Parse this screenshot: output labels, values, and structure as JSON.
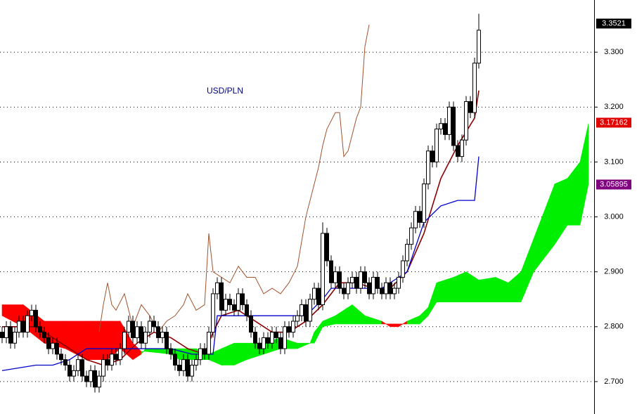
{
  "chart_data": {
    "type": "candlestick",
    "title": "USD/PLN",
    "xlim": [
      -0.5,
      140.5
    ],
    "ylim": [
      2.641,
      3.395
    ],
    "yticks": [
      {
        "value": 2.7,
        "label": "2.700"
      },
      {
        "value": 2.8,
        "label": "2.800"
      },
      {
        "value": 2.9,
        "label": "2.900"
      },
      {
        "value": 3.0,
        "label": "3.000"
      },
      {
        "value": 3.1,
        "label": "3.100"
      },
      {
        "value": 3.2,
        "label": "3.200"
      },
      {
        "value": 3.3,
        "label": "3.300"
      }
    ],
    "grid": true,
    "up_color": "#ffffff",
    "down_color": "#000000",
    "open": [
      2.79,
      2.78,
      2.8,
      2.77,
      2.79,
      2.81,
      2.79,
      2.82,
      2.83,
      2.8,
      2.79,
      2.78,
      2.76,
      2.77,
      2.75,
      2.74,
      2.73,
      2.71,
      2.72,
      2.74,
      2.71,
      2.7,
      2.72,
      2.69,
      2.71,
      2.74,
      2.73,
      2.75,
      2.74,
      2.76,
      2.79,
      2.81,
      2.78,
      2.8,
      2.77,
      2.79,
      2.81,
      2.8,
      2.78,
      2.79,
      2.76,
      2.75,
      2.73,
      2.72,
      2.74,
      2.71,
      2.73,
      2.74,
      2.76,
      2.75,
      2.79,
      2.86,
      2.88,
      2.83,
      2.85,
      2.84,
      2.83,
      2.86,
      2.84,
      2.82,
      2.79,
      2.77,
      2.76,
      2.78,
      2.77,
      2.79,
      2.78,
      2.76,
      2.8,
      2.79,
      2.81,
      2.82,
      2.84,
      2.81,
      2.85,
      2.87,
      2.84,
      2.97,
      2.92,
      2.88,
      2.9,
      2.87,
      2.86,
      2.88,
      2.89,
      2.87,
      2.9,
      2.88,
      2.86,
      2.89,
      2.87,
      2.86,
      2.88,
      2.86,
      2.87,
      2.89,
      2.92,
      2.95,
      2.98,
      3.01,
      2.99,
      3.06,
      3.12,
      3.1,
      3.16,
      3.17,
      3.15,
      3.2,
      3.13,
      3.11,
      3.14,
      3.21,
      3.19,
      3.28
    ],
    "high": [
      2.8,
      2.81,
      2.81,
      2.8,
      2.82,
      2.82,
      2.83,
      2.84,
      2.84,
      2.81,
      2.8,
      2.79,
      2.78,
      2.78,
      2.76,
      2.75,
      2.74,
      2.73,
      2.75,
      2.75,
      2.72,
      2.73,
      2.73,
      2.72,
      2.75,
      2.75,
      2.76,
      2.76,
      2.77,
      2.8,
      2.82,
      2.82,
      2.81,
      2.81,
      2.8,
      2.82,
      2.82,
      2.81,
      2.8,
      2.8,
      2.77,
      2.76,
      2.74,
      2.75,
      2.75,
      2.74,
      2.75,
      2.77,
      2.77,
      2.8,
      2.87,
      2.89,
      2.89,
      2.86,
      2.86,
      2.85,
      2.87,
      2.87,
      2.85,
      2.83,
      2.8,
      2.78,
      2.79,
      2.79,
      2.8,
      2.8,
      2.79,
      2.81,
      2.81,
      2.82,
      2.83,
      2.85,
      2.85,
      2.86,
      2.88,
      2.88,
      2.99,
      2.98,
      2.93,
      2.91,
      2.91,
      2.88,
      2.89,
      2.9,
      2.9,
      2.91,
      2.91,
      2.89,
      2.9,
      2.9,
      2.88,
      2.89,
      2.89,
      2.88,
      2.9,
      2.93,
      2.96,
      2.99,
      3.02,
      3.02,
      3.07,
      3.13,
      3.13,
      3.17,
      3.18,
      3.18,
      3.21,
      3.21,
      3.14,
      3.15,
      3.22,
      3.22,
      3.29,
      3.37
    ],
    "low": [
      2.77,
      2.77,
      2.76,
      2.76,
      2.78,
      2.78,
      2.78,
      2.81,
      2.79,
      2.78,
      2.77,
      2.75,
      2.75,
      2.74,
      2.73,
      2.72,
      2.7,
      2.7,
      2.71,
      2.7,
      2.69,
      2.69,
      2.68,
      2.68,
      2.7,
      2.72,
      2.72,
      2.73,
      2.73,
      2.75,
      2.78,
      2.77,
      2.77,
      2.76,
      2.76,
      2.78,
      2.79,
      2.77,
      2.77,
      2.75,
      2.74,
      2.72,
      2.71,
      2.71,
      2.7,
      2.7,
      2.72,
      2.73,
      2.74,
      2.74,
      2.78,
      2.85,
      2.82,
      2.82,
      2.83,
      2.82,
      2.82,
      2.83,
      2.81,
      2.78,
      2.76,
      2.75,
      2.75,
      2.76,
      2.76,
      2.77,
      2.75,
      2.75,
      2.78,
      2.78,
      2.8,
      2.81,
      2.8,
      2.8,
      2.84,
      2.83,
      2.83,
      2.91,
      2.87,
      2.87,
      2.86,
      2.85,
      2.85,
      2.87,
      2.86,
      2.86,
      2.87,
      2.85,
      2.85,
      2.86,
      2.85,
      2.85,
      2.85,
      2.85,
      2.86,
      2.88,
      2.91,
      2.94,
      2.97,
      2.98,
      2.98,
      3.05,
      3.09,
      3.09,
      3.15,
      3.14,
      3.14,
      3.12,
      3.1,
      3.1,
      3.13,
      3.18,
      3.18,
      3.27
    ],
    "close": [
      2.78,
      2.8,
      2.77,
      2.79,
      2.81,
      2.79,
      2.82,
      2.83,
      2.8,
      2.79,
      2.78,
      2.76,
      2.77,
      2.75,
      2.74,
      2.73,
      2.71,
      2.72,
      2.74,
      2.71,
      2.7,
      2.72,
      2.69,
      2.71,
      2.74,
      2.73,
      2.75,
      2.74,
      2.76,
      2.79,
      2.81,
      2.78,
      2.8,
      2.77,
      2.79,
      2.81,
      2.8,
      2.78,
      2.79,
      2.76,
      2.75,
      2.73,
      2.72,
      2.74,
      2.71,
      2.73,
      2.74,
      2.76,
      2.75,
      2.79,
      2.86,
      2.88,
      2.83,
      2.85,
      2.84,
      2.83,
      2.86,
      2.84,
      2.82,
      2.79,
      2.77,
      2.76,
      2.78,
      2.77,
      2.79,
      2.78,
      2.76,
      2.8,
      2.79,
      2.81,
      2.82,
      2.84,
      2.81,
      2.85,
      2.87,
      2.84,
      2.97,
      2.92,
      2.88,
      2.9,
      2.87,
      2.86,
      2.88,
      2.89,
      2.87,
      2.9,
      2.88,
      2.86,
      2.89,
      2.87,
      2.86,
      2.88,
      2.86,
      2.87,
      2.89,
      2.92,
      2.95,
      2.98,
      3.01,
      2.99,
      3.06,
      3.12,
      3.1,
      3.16,
      3.17,
      3.15,
      3.2,
      3.13,
      3.11,
      3.14,
      3.21,
      3.19,
      3.28,
      3.34
    ],
    "lines": [
      {
        "color": "#8b0000",
        "width": 1.6,
        "x": [
          0,
          4,
          8,
          12,
          16,
          20,
          24,
          28,
          32,
          36,
          40,
          44,
          48,
          50,
          52,
          56,
          60,
          64,
          68,
          72,
          76,
          80,
          84,
          88,
          92,
          96,
          100,
          104,
          108,
          112,
          113
        ],
        "values": [
          2.8,
          2.8,
          2.8,
          2.78,
          2.76,
          2.74,
          2.73,
          2.74,
          2.77,
          2.79,
          2.78,
          2.76,
          2.75,
          2.79,
          2.82,
          2.83,
          2.81,
          2.79,
          2.79,
          2.81,
          2.84,
          2.88,
          2.88,
          2.87,
          2.87,
          2.9,
          2.97,
          3.07,
          3.13,
          3.18,
          3.23
        ]
      },
      {
        "color": "#0000cc",
        "width": 1.3,
        "x": [
          0,
          8,
          12,
          16,
          20,
          30,
          40,
          45,
          50,
          51,
          60,
          68,
          72,
          76,
          78,
          90,
          94,
          96,
          100,
          104,
          108,
          112,
          113
        ],
        "values": [
          2.72,
          2.73,
          2.73,
          2.74,
          2.76,
          2.76,
          2.76,
          2.75,
          2.75,
          2.82,
          2.82,
          2.82,
          2.82,
          2.85,
          2.87,
          2.87,
          2.89,
          2.9,
          2.99,
          3.02,
          3.03,
          3.03,
          3.11
        ]
      },
      {
        "color": "#a0522d",
        "width": 1,
        "x": [
          23,
          24,
          25,
          26,
          27,
          29,
          31,
          33,
          35,
          37,
          39,
          41,
          43,
          44,
          46,
          48,
          49,
          50,
          52,
          54,
          56,
          58,
          60,
          62,
          64,
          66,
          68,
          70,
          72,
          74,
          75,
          76,
          77,
          79,
          80,
          81,
          82,
          84,
          85,
          86,
          87
        ],
        "values": [
          2.79,
          2.84,
          2.88,
          2.84,
          2.83,
          2.86,
          2.8,
          2.84,
          2.82,
          2.79,
          2.81,
          2.82,
          2.84,
          2.86,
          2.83,
          2.84,
          2.97,
          2.9,
          2.89,
          2.88,
          2.91,
          2.89,
          2.89,
          2.86,
          2.87,
          2.86,
          2.88,
          2.91,
          3.0,
          3.06,
          3.09,
          3.13,
          3.16,
          3.19,
          3.19,
          3.11,
          3.12,
          3.18,
          3.2,
          3.31,
          3.35
        ]
      }
    ],
    "cloud": {
      "up_color": "#00ee00",
      "down_color": "#ff0000",
      "x": [
        0,
        5,
        10,
        15,
        20,
        25,
        28,
        31,
        33,
        34,
        40,
        42,
        46,
        49,
        52,
        55,
        58,
        62,
        66,
        70,
        73,
        74,
        76,
        79,
        83,
        86,
        90,
        92,
        94,
        96,
        99,
        101,
        103,
        107,
        110,
        113,
        117,
        120,
        123,
        126,
        129,
        131,
        134,
        137,
        139
      ],
      "span_a": [
        2.82,
        2.8,
        2.77,
        2.76,
        2.74,
        2.74,
        2.76,
        2.74,
        2.75,
        2.76,
        2.76,
        2.76,
        2.76,
        2.75,
        2.76,
        2.77,
        2.77,
        2.77,
        2.78,
        2.77,
        2.77,
        2.79,
        2.81,
        2.82,
        2.84,
        2.82,
        2.81,
        2.8,
        2.8,
        2.81,
        2.82,
        2.835,
        2.88,
        2.89,
        2.9,
        2.885,
        2.89,
        2.88,
        2.9,
        2.96,
        3.02,
        3.06,
        3.07,
        3.1,
        3.17
      ],
      "span_b": [
        2.84,
        2.84,
        2.81,
        2.81,
        2.81,
        2.81,
        2.81,
        2.77,
        2.755,
        2.755,
        2.75,
        2.74,
        2.74,
        2.74,
        2.73,
        2.73,
        2.74,
        2.75,
        2.76,
        2.76,
        2.77,
        2.77,
        2.8,
        2.805,
        2.805,
        2.805,
        2.805,
        2.805,
        2.805,
        2.805,
        2.805,
        2.82,
        2.845,
        2.845,
        2.845,
        2.845,
        2.845,
        2.845,
        2.845,
        2.9,
        2.93,
        2.95,
        2.985,
        2.985,
        3.06
      ]
    },
    "price_labels": [
      {
        "value": 3.3521,
        "color": "#000000"
      },
      {
        "value": 3.17162,
        "color": "#e00000"
      },
      {
        "value": 3.05895,
        "color": "#800080"
      }
    ]
  }
}
